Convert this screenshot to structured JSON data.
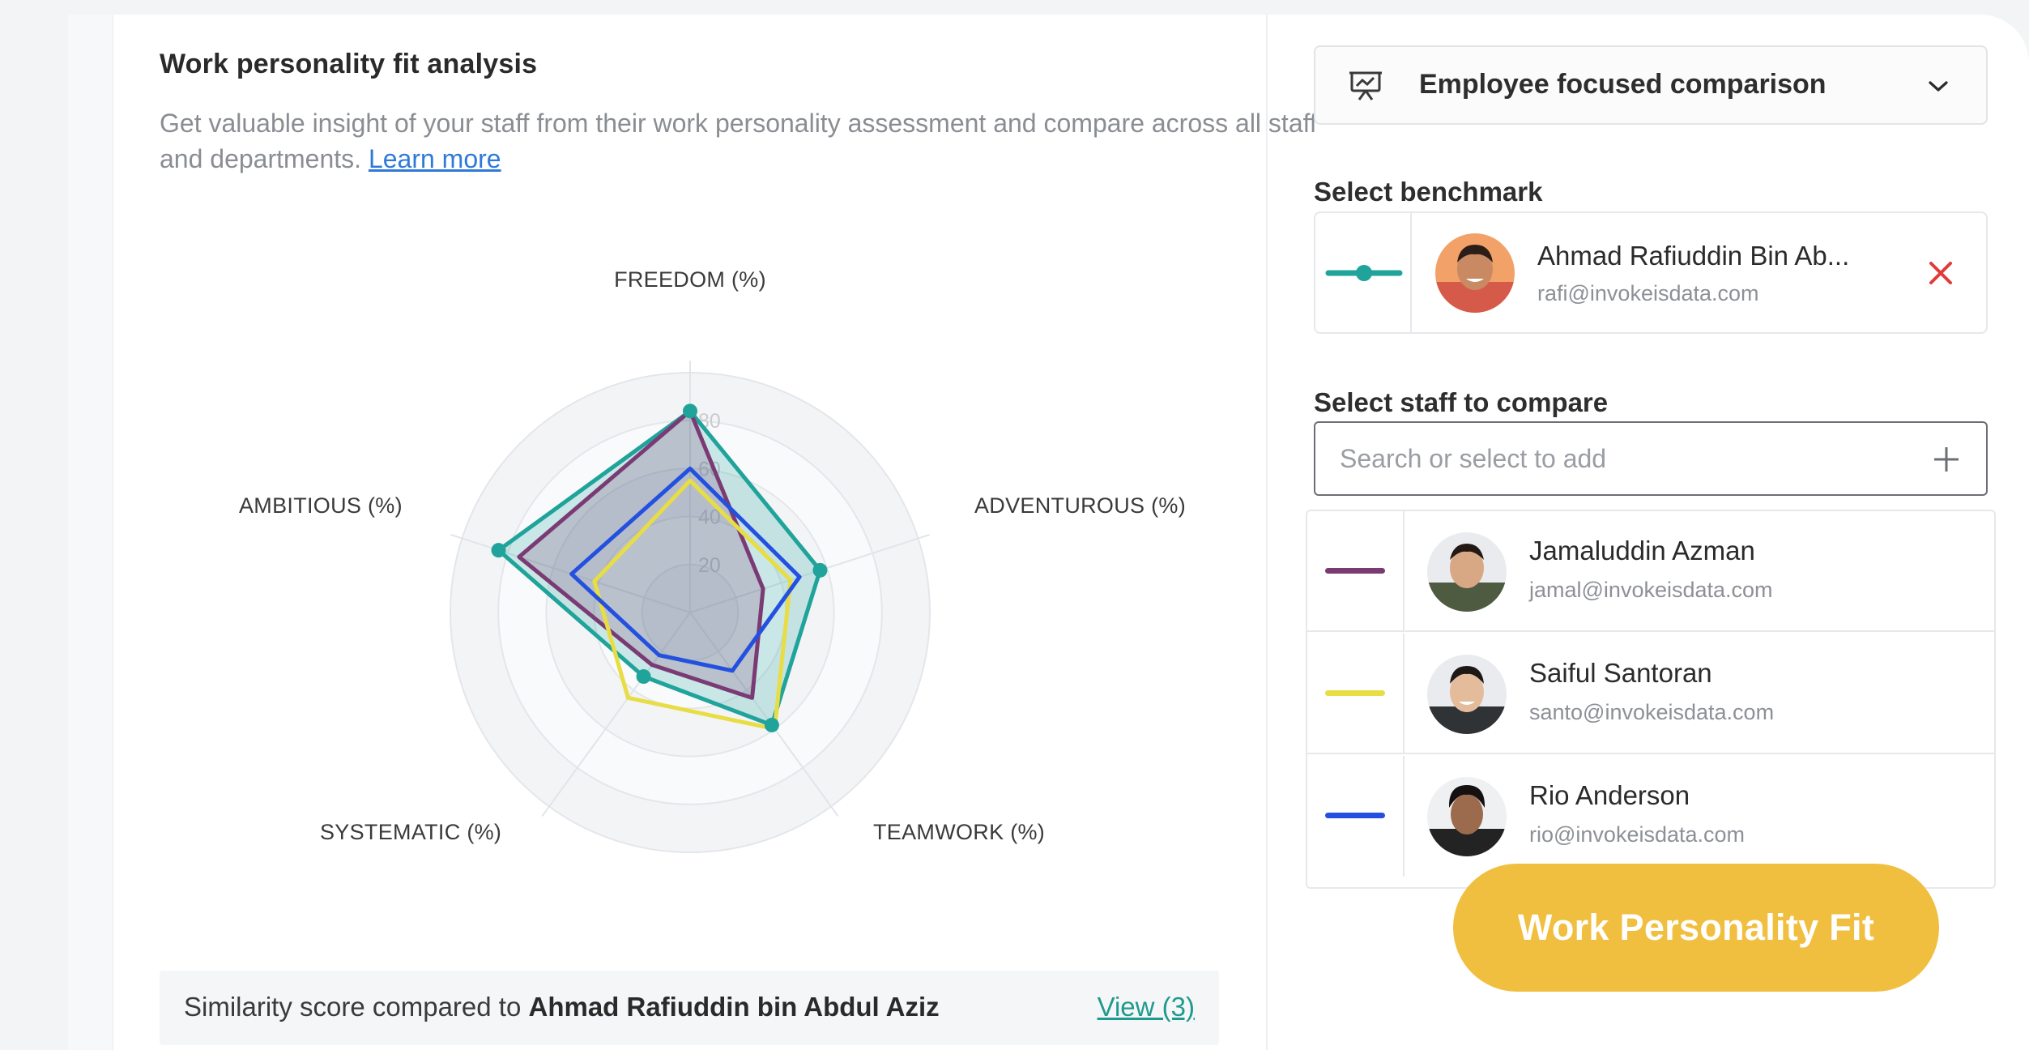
{
  "left": {
    "title": "Work personality fit analysis",
    "description": "Get valuable insight of your staff from their work personality assessment and compare across all staff and departments.",
    "learn_more": "Learn more",
    "similarity_prefix": "Similarity score compared to ",
    "similarity_name": "Ahmad Rafiuddin bin Abdul Aziz",
    "view_link": "View (3)"
  },
  "chart_data": {
    "type": "radar",
    "axes": [
      "FREEDOM (%)",
      "ADVENTUROUS (%)",
      "TEAMWORK (%)",
      "SYSTEMATIC (%)",
      "AMBITIOUS (%)"
    ],
    "tick_labels": [
      "20",
      "40",
      "60",
      "80"
    ],
    "rlim": [
      0,
      100
    ],
    "series": [
      {
        "name": "Ahmad Rafiuddin Bin Ab...",
        "color": "#1fa39a",
        "values": [
          84,
          57,
          58,
          33,
          84
        ],
        "fill": true
      },
      {
        "name": "Jamaluddin Azman",
        "color": "#7a3b74",
        "values": [
          84,
          32,
          44,
          27,
          75
        ],
        "fill": true
      },
      {
        "name": "Saiful Santoran",
        "color": "#e8dd45",
        "values": [
          55,
          44,
          60,
          44,
          42
        ],
        "fill": false
      },
      {
        "name": "Rio Anderson",
        "color": "#2450e0",
        "values": [
          60,
          48,
          30,
          22,
          52
        ],
        "fill": false
      }
    ]
  },
  "right": {
    "dropdown_label": "Employee focused comparison",
    "benchmark_label": "Select benchmark",
    "benchmark": {
      "name": "Ahmad Rafiuddin Bin Ab...",
      "email": "rafi@invokeisdata.com",
      "color": "#1fa39a"
    },
    "compare_label": "Select staff to compare",
    "search_placeholder": "Search or select to add",
    "staff": [
      {
        "name": "Jamaluddin Azman",
        "email": "jamal@invokeisdata.com",
        "color": "#7a3b74"
      },
      {
        "name": "Saiful Santoran",
        "email": "santo@invokeisdata.com",
        "color": "#e8dd45"
      },
      {
        "name": "Rio Anderson",
        "email": "rio@invokeisdata.com",
        "color": "#2450e0"
      }
    ]
  },
  "cta_label": "Work Personality Fit"
}
